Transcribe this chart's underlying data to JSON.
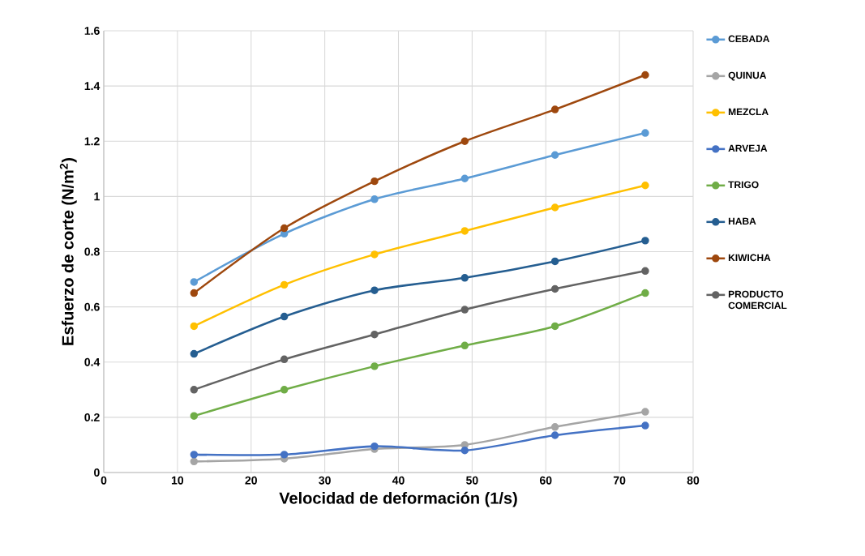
{
  "chart_data": {
    "type": "line",
    "xlabel": "Velocidad de deformación (1/s)",
    "ylabel": "Esfuerzo de corte (N/m$^{2}$)",
    "x": [
      12.25,
      24.5,
      36.75,
      49,
      61.25,
      73.5
    ],
    "series": [
      {
        "name": "CEBADA",
        "color": "#5b9bd5",
        "values": [
          0.69,
          0.865,
          0.99,
          1.065,
          1.15,
          1.23
        ]
      },
      {
        "name": "QUINUA",
        "color": "#a5a5a5",
        "values": [
          0.04,
          0.05,
          0.085,
          0.1,
          0.165,
          0.22
        ]
      },
      {
        "name": "MEZCLA",
        "color": "#ffc000",
        "values": [
          0.53,
          0.68,
          0.79,
          0.875,
          0.96,
          1.04
        ]
      },
      {
        "name": "ARVEJA",
        "color": "#4472c4",
        "values": [
          0.065,
          0.065,
          0.095,
          0.08,
          0.135,
          0.17
        ]
      },
      {
        "name": "TRIGO",
        "color": "#70ad47",
        "values": [
          0.205,
          0.3,
          0.385,
          0.46,
          0.53,
          0.65
        ]
      },
      {
        "name": "HABA",
        "color": "#255e91",
        "values": [
          0.43,
          0.565,
          0.66,
          0.705,
          0.765,
          0.84
        ]
      },
      {
        "name": "KIWICHA",
        "color": "#9e480e",
        "values": [
          0.65,
          0.885,
          1.055,
          1.2,
          1.315,
          1.44
        ]
      },
      {
        "name": "PRODUCTO COMERCIAL",
        "color": "#636363",
        "values": [
          0.3,
          0.41,
          0.5,
          0.59,
          0.665,
          0.73
        ]
      }
    ],
    "xlim": [
      0,
      80
    ],
    "ylim": [
      0,
      1.6
    ],
    "xticks": [
      0,
      10,
      20,
      30,
      40,
      50,
      60,
      70,
      80
    ],
    "yticks": [
      0,
      0.2,
      0.4,
      0.6,
      0.8,
      1,
      1.2,
      1.4,
      1.6
    ],
    "grid": true,
    "legend": "right",
    "marker": "circle",
    "line_style": "solid"
  }
}
